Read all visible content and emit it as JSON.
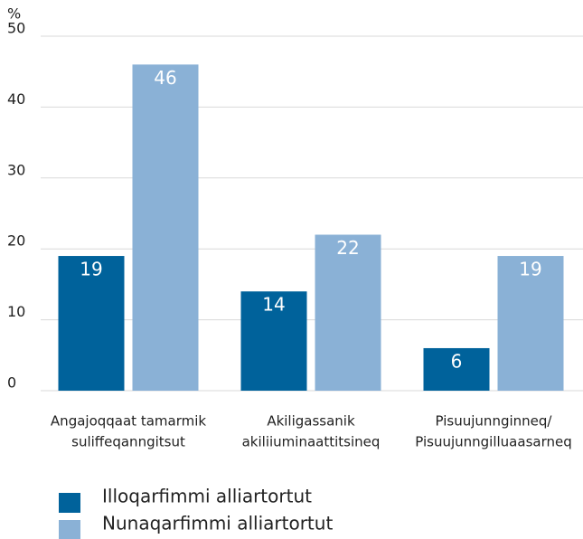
{
  "chart_data": {
    "type": "bar",
    "y_label": "%",
    "categories": [
      [
        "Angajoqqaat tamarmik",
        "suliffeqanngitsut"
      ],
      [
        "Akiligassanik",
        "akiliiuminaattitsineq"
      ],
      [
        "Pisuujunnginneq/",
        "Pisuujunngilluaasarneq"
      ]
    ],
    "series": [
      {
        "name": "Illoqarfimmi alliartortut",
        "color": "#00629b",
        "values": [
          19,
          14,
          6
        ]
      },
      {
        "name": "Nunaqarfimmi alliartortut",
        "color": "#8ab1d6",
        "values": [
          46,
          22,
          19
        ]
      }
    ],
    "ylim": [
      0,
      50
    ],
    "yticks": [
      0,
      10,
      20,
      30,
      40,
      50
    ],
    "grid": true
  }
}
